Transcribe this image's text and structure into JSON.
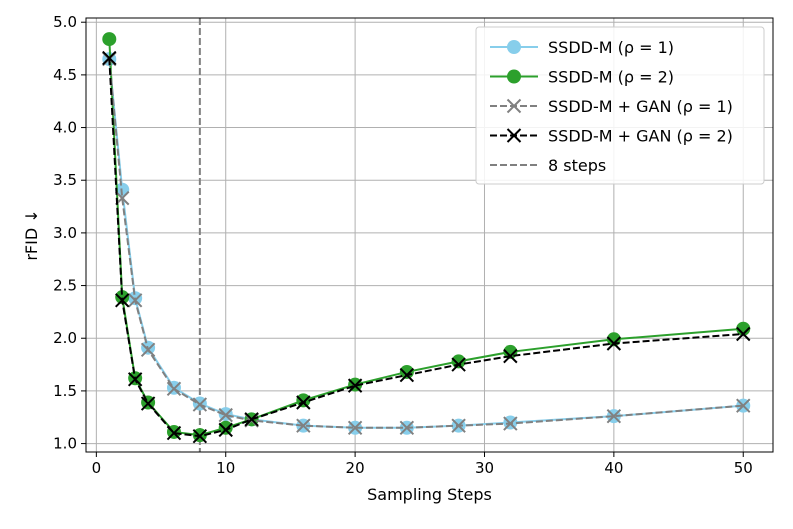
{
  "chart_data": {
    "type": "line",
    "title": "",
    "xlabel": "Sampling Steps",
    "ylabel": "rFID ↓",
    "xlim": [
      -0.8,
      52.3
    ],
    "ylim": [
      0.92,
      5.04
    ],
    "xticks": [
      "0",
      "10",
      "20",
      "30",
      "40",
      "50"
    ],
    "xtick_values": [
      0,
      10,
      20,
      30,
      40,
      50
    ],
    "yticks": [
      "1.0",
      "1.5",
      "2.0",
      "2.5",
      "3.0",
      "3.5",
      "4.0",
      "4.5",
      "5.0"
    ],
    "ytick_values": [
      1.0,
      1.5,
      2.0,
      2.5,
      3.0,
      3.5,
      4.0,
      4.5,
      5.0
    ],
    "grid": true,
    "legend_position": "top-right",
    "x": [
      1,
      2,
      3,
      4,
      6,
      8,
      10,
      12,
      16,
      20,
      24,
      28,
      32,
      40,
      50
    ],
    "series": [
      {
        "name": "SSDD-M (ρ = 1)",
        "color": "#87ceeb",
        "marker": "circle",
        "dash": "solid",
        "values": [
          4.65,
          3.41,
          2.38,
          1.91,
          1.53,
          1.38,
          1.28,
          1.23,
          1.17,
          1.15,
          1.15,
          1.17,
          1.2,
          1.26,
          1.36
        ]
      },
      {
        "name": "SSDD-M (ρ = 2)",
        "color": "#2ca02c",
        "marker": "circle",
        "dash": "solid",
        "values": [
          4.84,
          2.39,
          1.62,
          1.39,
          1.11,
          1.08,
          1.15,
          1.23,
          1.41,
          1.56,
          1.68,
          1.78,
          1.87,
          1.99,
          2.09
        ]
      },
      {
        "name": "SSDD-M + GAN (ρ = 1)",
        "color": "#808080",
        "marker": "x",
        "dash": "dashed",
        "values": [
          4.65,
          3.33,
          2.36,
          1.89,
          1.52,
          1.37,
          1.27,
          1.22,
          1.17,
          1.15,
          1.15,
          1.17,
          1.19,
          1.26,
          1.36
        ]
      },
      {
        "name": "SSDD-M + GAN (ρ = 2)",
        "color": "#000000",
        "marker": "x",
        "dash": "dashed",
        "values": [
          4.66,
          2.36,
          1.61,
          1.38,
          1.1,
          1.07,
          1.13,
          1.23,
          1.39,
          1.55,
          1.65,
          1.75,
          1.83,
          1.95,
          2.04
        ]
      }
    ],
    "reference_line": {
      "name": "8 steps",
      "x": 8,
      "color": "#808080",
      "dash": "dashed"
    }
  }
}
